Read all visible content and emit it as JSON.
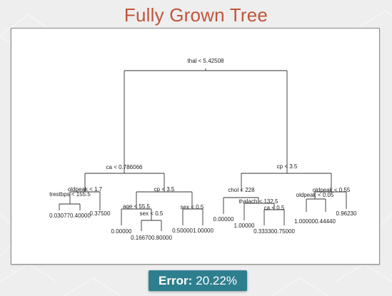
{
  "title": "Fully Grown Tree",
  "error": {
    "label": "Error:",
    "value": "20.22%"
  },
  "tree": {
    "split_labels": {
      "root": "thal < 5.42508",
      "left": "ca < 0.786066",
      "right": "cp < 3.5",
      "ll": "oldpeak < 1.7",
      "ll_sub": "trestbps < 155.5",
      "lr": "cp < 3.5",
      "lr_age": "age < 55.5",
      "lr_sex_a": "sex < 0.5",
      "lr_sex_b": "sex < 0.5",
      "rl": "chol < 228",
      "rl_thalach": "thalach < 132.5",
      "rl_ca": "ca < 0.5",
      "rr": "oldpeak < 0.55",
      "rr_sub": "oldpeak < 0.05"
    },
    "leaf_labels": {
      "ll_pair": "0.030770.40000",
      "ll_single": "0.37500",
      "lr_age_leaf": "0.00000",
      "lr_sexa_pair": "0.166700.80000",
      "lr_sexb_pair": "0.500001.00000",
      "rl_left": "0.00000",
      "rl_thalach_leaf": "1.00000",
      "rl_ca_pair": "0.333300.75000",
      "rr_pair": "1.000000.44440",
      "rr_single": "0.96230"
    }
  }
}
